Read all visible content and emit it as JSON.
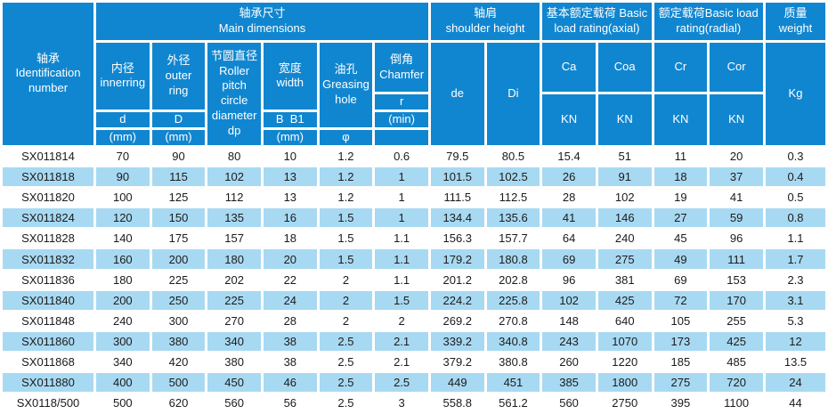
{
  "colors": {
    "header_blue": "#1186d0",
    "row_alt_blue": "#a8d9f2",
    "row_white": "#ffffff",
    "header_text": "#ffffff",
    "data_text": "#1b1b1b"
  },
  "header": {
    "id": [
      "轴承",
      "Identification",
      "number"
    ],
    "main": [
      "轴承尺寸",
      "Main dimensions"
    ],
    "shoulder": [
      "轴肩",
      "shoulder height"
    ],
    "axial": [
      "基本额定载荷 Basic",
      "load rating(axial)"
    ],
    "radial": [
      "额定载荷Basic load",
      "rating(radial)"
    ],
    "weight": [
      "质量",
      "weight"
    ],
    "inner": [
      "内径",
      "innerring"
    ],
    "outer": [
      "外径",
      "outer",
      "ring"
    ],
    "pitch": [
      "节圆直径",
      "Roller",
      "pitch",
      "circle",
      "diameter",
      "dp"
    ],
    "width": [
      "宽度",
      "width"
    ],
    "grease": [
      "油孔",
      "Greasing",
      "hole"
    ],
    "chamfer": [
      "倒角",
      "Chamfer"
    ],
    "de": "de",
    "di": "Di",
    "ca": "Ca",
    "coa": "Coa",
    "cr": "Cr",
    "cor": "Cor",
    "kg": "Kg",
    "d_lower": "d",
    "d_upper": "D",
    "bb1": "B  B1",
    "mm": "(mm)",
    "phi": "φ",
    "r": "r",
    "min": "(min)",
    "kn": "KN"
  },
  "chart_data": {
    "type": "table",
    "title": "",
    "columns": [
      "轴承 Identification number",
      "内径 innerring d (mm)",
      "外径 outer ring D (mm)",
      "节圆直径 Roller pitch circle diameter dp",
      "宽度 width B B1 (mm)",
      "油孔 Greasing hole φ",
      "倒角 Chamfer r (min)",
      "轴肩 shoulder height de",
      "轴肩 shoulder height Di",
      "基本额定载荷 Basic load rating(axial) Ca (KN)",
      "基本额定载荷 Basic load rating(axial) Coa (KN)",
      "额定载荷 Basic load rating(radial) Cr (KN)",
      "额定载荷 Basic load rating(radial) Cor (KN)",
      "质量 weight (Kg)"
    ],
    "rows": [
      [
        "SX011814",
        "70",
        "90",
        "80",
        "10",
        "1.2",
        "0.6",
        "79.5",
        "80.5",
        "15.4",
        "51",
        "11",
        "20",
        "0.3"
      ],
      [
        "SX011818",
        "90",
        "115",
        "102",
        "13",
        "1.2",
        "1",
        "101.5",
        "102.5",
        "26",
        "91",
        "18",
        "37",
        "0.4"
      ],
      [
        "SX011820",
        "100",
        "125",
        "112",
        "13",
        "1.2",
        "1",
        "111.5",
        "112.5",
        "28",
        "102",
        "19",
        "41",
        "0.5"
      ],
      [
        "SX011824",
        "120",
        "150",
        "135",
        "16",
        "1.5",
        "1",
        "134.4",
        "135.6",
        "41",
        "146",
        "27",
        "59",
        "0.8"
      ],
      [
        "SX011828",
        "140",
        "175",
        "157",
        "18",
        "1.5",
        "1.1",
        "156.3",
        "157.7",
        "64",
        "240",
        "45",
        "96",
        "1.1"
      ],
      [
        "SX011832",
        "160",
        "200",
        "180",
        "20",
        "1.5",
        "1.1",
        "179.2",
        "180.8",
        "69",
        "275",
        "49",
        "111",
        "1.7"
      ],
      [
        "SX011836",
        "180",
        "225",
        "202",
        "22",
        "2",
        "1.1",
        "201.2",
        "202.8",
        "96",
        "381",
        "69",
        "153",
        "2.3"
      ],
      [
        "SX011840",
        "200",
        "250",
        "225",
        "24",
        "2",
        "1.5",
        "224.2",
        "225.8",
        "102",
        "425",
        "72",
        "170",
        "3.1"
      ],
      [
        "SX011848",
        "240",
        "300",
        "270",
        "28",
        "2",
        "2",
        "269.2",
        "270.8",
        "148",
        "640",
        "105",
        "255",
        "5.3"
      ],
      [
        "SX011860",
        "300",
        "380",
        "340",
        "38",
        "2.5",
        "2.1",
        "339.2",
        "340.8",
        "243",
        "1070",
        "173",
        "425",
        "12"
      ],
      [
        "SX011868",
        "340",
        "420",
        "380",
        "38",
        "2.5",
        "2.1",
        "379.2",
        "380.8",
        "260",
        "1220",
        "185",
        "485",
        "13.5"
      ],
      [
        "SX011880",
        "400",
        "500",
        "450",
        "46",
        "2.5",
        "2.5",
        "449",
        "451",
        "385",
        "1800",
        "275",
        "720",
        "24"
      ],
      [
        "SX0118/500",
        "500",
        "620",
        "560",
        "56",
        "2.5",
        "3",
        "558.8",
        "561.2",
        "560",
        "2750",
        "395",
        "1100",
        "44"
      ]
    ]
  }
}
